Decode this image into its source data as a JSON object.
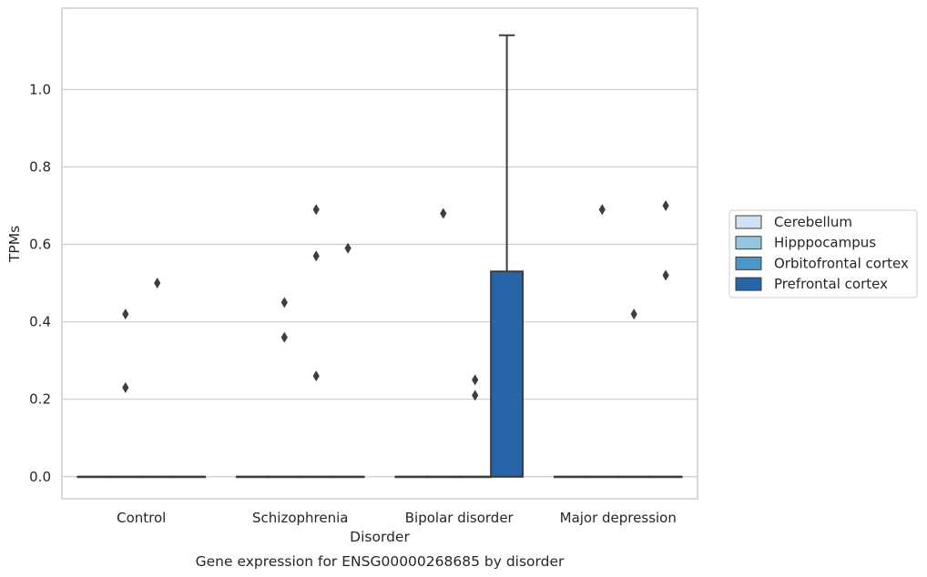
{
  "chart_data": {
    "type": "box",
    "title": "Gene expression for ENSG00000268685 by disorder",
    "xlabel": "Disorder",
    "ylabel": "TPMs",
    "categories": [
      "Control",
      "Schizophrenia",
      "Bipolar disorder",
      "Major depression"
    ],
    "yticks": [
      "0.0",
      "0.2",
      "0.4",
      "0.6",
      "0.8",
      "1.0"
    ],
    "ylim": [
      -0.057,
      1.21
    ],
    "grid": "horizontal",
    "legend_position": "right",
    "series": [
      {
        "name": "Cerebellum",
        "color": "#d0e1f2",
        "boxes": [
          {
            "q1": 0,
            "median": 0,
            "q3": 0,
            "whisker_low": 0,
            "whisker_high": 0,
            "outliers": []
          },
          {
            "q1": 0,
            "median": 0,
            "q3": 0,
            "whisker_low": 0,
            "whisker_high": 0,
            "outliers": []
          },
          {
            "q1": 0,
            "median": 0,
            "q3": 0,
            "whisker_low": 0,
            "whisker_high": 0,
            "outliers": []
          },
          {
            "q1": 0,
            "median": 0,
            "q3": 0,
            "whisker_low": 0,
            "whisker_high": 0,
            "outliers": []
          }
        ]
      },
      {
        "name": "Hipppocampus",
        "color": "#94c4df",
        "boxes": [
          {
            "q1": 0,
            "median": 0,
            "q3": 0,
            "whisker_low": 0,
            "whisker_high": 0,
            "outliers": [
              0.23,
              0.42
            ]
          },
          {
            "q1": 0,
            "median": 0,
            "q3": 0,
            "whisker_low": 0,
            "whisker_high": 0,
            "outliers": [
              0.36,
              0.45
            ]
          },
          {
            "q1": 0,
            "median": 0,
            "q3": 0,
            "whisker_low": 0,
            "whisker_high": 0,
            "outliers": [
              0.68
            ]
          },
          {
            "q1": 0,
            "median": 0,
            "q3": 0,
            "whisker_low": 0,
            "whisker_high": 0,
            "outliers": [
              0.69
            ]
          }
        ]
      },
      {
        "name": "Orbitofrontal cortex",
        "color": "#4a98c9",
        "boxes": [
          {
            "q1": 0,
            "median": 0,
            "q3": 0,
            "whisker_low": 0,
            "whisker_high": 0,
            "outliers": [
              0.5
            ]
          },
          {
            "q1": 0,
            "median": 0,
            "q3": 0,
            "whisker_low": 0,
            "whisker_high": 0,
            "outliers": [
              0.26,
              0.57,
              0.69
            ]
          },
          {
            "q1": 0,
            "median": 0,
            "q3": 0,
            "whisker_low": 0,
            "whisker_high": 0,
            "outliers": [
              0.21,
              0.25
            ]
          },
          {
            "q1": 0,
            "median": 0,
            "q3": 0,
            "whisker_low": 0,
            "whisker_high": 0,
            "outliers": [
              0.42
            ]
          }
        ]
      },
      {
        "name": "Prefrontal cortex",
        "color": "#2764a8",
        "boxes": [
          {
            "q1": 0,
            "median": 0,
            "q3": 0,
            "whisker_low": 0,
            "whisker_high": 0,
            "outliers": []
          },
          {
            "q1": 0,
            "median": 0,
            "q3": 0,
            "whisker_low": 0,
            "whisker_high": 0,
            "outliers": [
              0.59
            ]
          },
          {
            "q1": 0,
            "median": 0,
            "q3": 0.53,
            "whisker_low": 0,
            "whisker_high": 1.14,
            "outliers": []
          },
          {
            "q1": 0,
            "median": 0,
            "q3": 0,
            "whisker_low": 0,
            "whisker_high": 0,
            "outliers": [
              0.52,
              0.7
            ]
          }
        ]
      }
    ]
  }
}
